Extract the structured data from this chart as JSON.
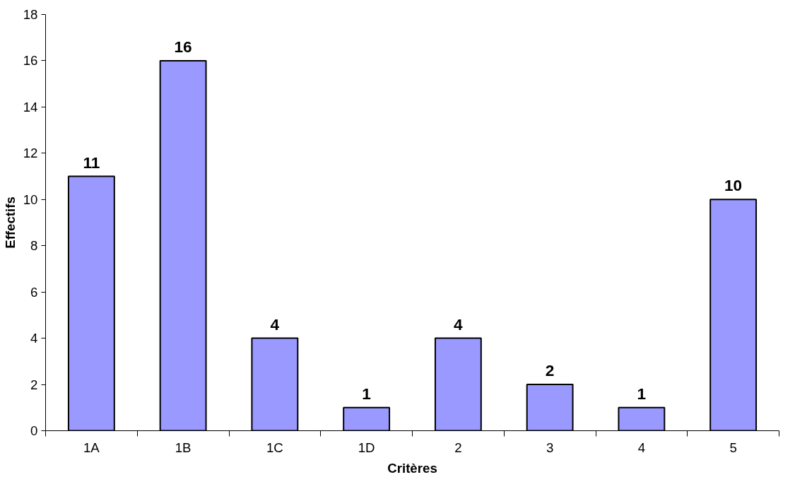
{
  "chart_data": {
    "type": "bar",
    "xlabel": "Critères",
    "ylabel": "Effectifs",
    "categories": [
      "1A",
      "1B",
      "1C",
      "1D",
      "2",
      "3",
      "4",
      "5"
    ],
    "values": [
      11,
      16,
      4,
      1,
      4,
      2,
      1,
      10
    ],
    "color": "#9999ff",
    "ylim": [
      0,
      18
    ],
    "yticks": [
      0,
      2,
      4,
      6,
      8,
      10,
      12,
      14,
      16,
      18
    ],
    "data_labels": true,
    "grid": false
  }
}
